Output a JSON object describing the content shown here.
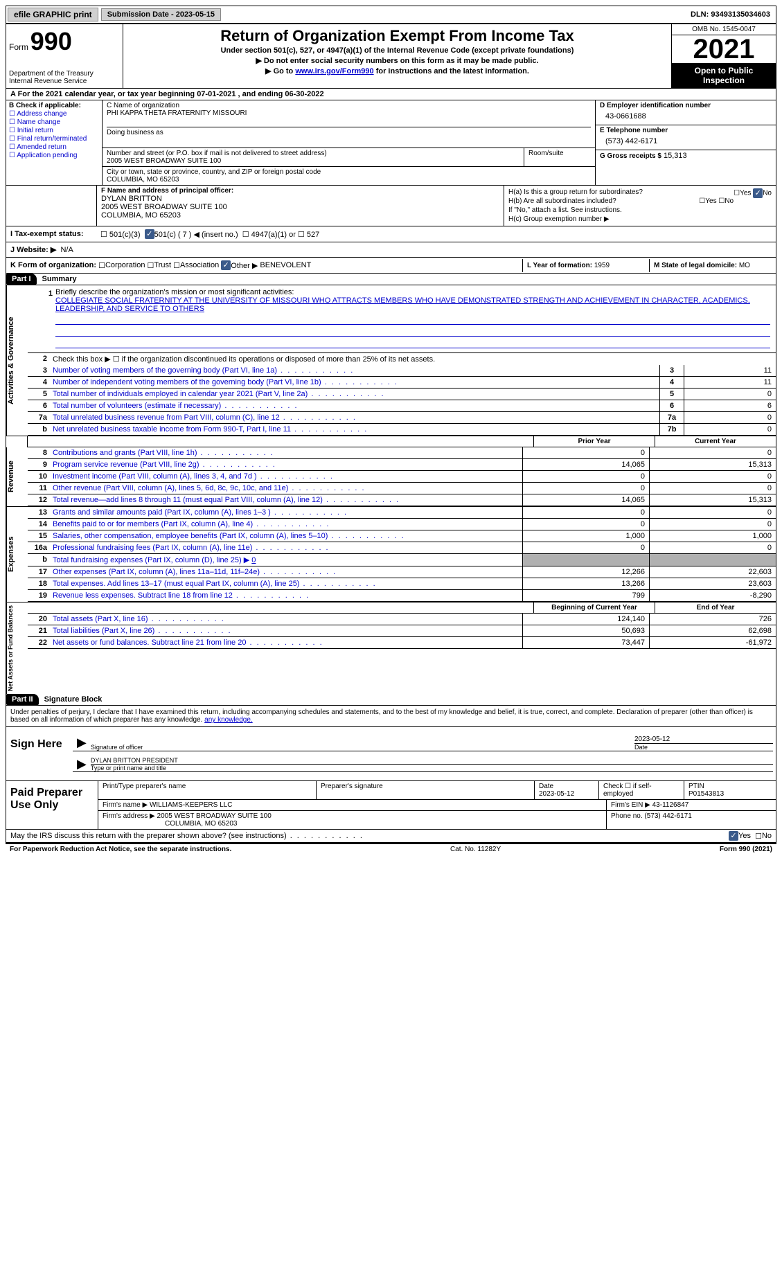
{
  "topbar": {
    "efile_btn": "efile GRAPHIC print",
    "sub_date_label": "Submission Date - 2023-05-15",
    "dln": "DLN: 93493135034603"
  },
  "header": {
    "form_label": "Form",
    "form_num": "990",
    "dept": "Department of the Treasury",
    "irs": "Internal Revenue Service",
    "title": "Return of Organization Exempt From Income Tax",
    "sub1": "Under section 501(c), 527, or 4947(a)(1) of the Internal Revenue Code (except private foundations)",
    "sub2": "▶ Do not enter social security numbers on this form as it may be made public.",
    "sub3_pre": "▶ Go to ",
    "sub3_link": "www.irs.gov/Form990",
    "sub3_post": " for instructions and the latest information.",
    "omb": "OMB No. 1545-0047",
    "year": "2021",
    "inspect": "Open to Public Inspection"
  },
  "row_a": "A For the 2021 calendar year, or tax year beginning 07-01-2021    , and ending 06-30-2022",
  "section_b": {
    "label": "B Check if applicable:",
    "items": [
      "Address change",
      "Name change",
      "Initial return",
      "Final return/terminated",
      "Amended return",
      "Application pending"
    ]
  },
  "section_c": {
    "name_label": "C Name of organization",
    "name": "PHI KAPPA THETA FRATERNITY MISSOURI",
    "dba_label": "Doing business as",
    "addr_label": "Number and street (or P.O. box if mail is not delivered to street address)",
    "addr": "2005 WEST BROADWAY SUITE 100",
    "room_label": "Room/suite",
    "city_label": "City or town, state or province, country, and ZIP or foreign postal code",
    "city": "COLUMBIA, MO  65203"
  },
  "section_d": {
    "ein_label": "D Employer identification number",
    "ein": "43-0661688",
    "phone_label": "E Telephone number",
    "phone": "(573) 442-6171",
    "receipts_label": "G Gross receipts $",
    "receipts": "15,313"
  },
  "section_f": {
    "label": "F  Name and address of principal officer:",
    "name": "DYLAN BRITTON",
    "addr": "2005 WEST BROADWAY SUITE 100",
    "city": "COLUMBIA, MO  65203"
  },
  "section_h": {
    "ha_label": "H(a)  Is this a group return for subordinates?",
    "hb_label": "H(b)  Are all subordinates included?",
    "hb_note": "If \"No,\" attach a list. See instructions.",
    "hc_label": "H(c)  Group exemption number ▶",
    "yes": "Yes",
    "no": "No"
  },
  "row_i": {
    "label": "I   Tax-exempt status:",
    "o1": "501(c)(3)",
    "o2": "501(c) ( 7 ) ◀ (insert no.)",
    "o3": "4947(a)(1) or",
    "o4": "527"
  },
  "row_j": {
    "label": "J   Website: ▶",
    "value": "N/A"
  },
  "row_k": {
    "label": "K Form of organization:",
    "o1": "Corporation",
    "o2": "Trust",
    "o3": "Association",
    "o4": "Other ▶",
    "other_val": "BENEVOLENT"
  },
  "row_l": {
    "label": "L Year of formation:",
    "value": "1959"
  },
  "row_m": {
    "label": "M State of legal domicile:",
    "value": "MO"
  },
  "part1": {
    "header": "Part I",
    "title": "Summary",
    "line1_label": "Briefly describe the organization's mission or most significant activities:",
    "mission": "COLLEGIATE SOCIAL FRATERNITY AT THE UNIVERSITY OF MISSOURI WHO ATTRACTS MEMBERS WHO HAVE DEMONSTRATED STRENGTH AND ACHIEVEMENT IN CHARACTER, ACADEMICS, LEADERSHIP, AND SERVICE TO OTHERS",
    "vert_ag": "Activities & Governance",
    "line2": "Check this box ▶ ☐  if the organization discontinued its operations or disposed of more than 25% of its net assets.",
    "lines_gov": [
      {
        "n": "3",
        "t": "Number of voting members of the governing body (Part VI, line 1a)",
        "box": "3",
        "v": "11"
      },
      {
        "n": "4",
        "t": "Number of independent voting members of the governing body (Part VI, line 1b)",
        "box": "4",
        "v": "11"
      },
      {
        "n": "5",
        "t": "Total number of individuals employed in calendar year 2021 (Part V, line 2a)",
        "box": "5",
        "v": "0"
      },
      {
        "n": "6",
        "t": "Total number of volunteers (estimate if necessary)",
        "box": "6",
        "v": "6"
      },
      {
        "n": "7a",
        "t": "Total unrelated business revenue from Part VIII, column (C), line 12",
        "box": "7a",
        "v": "0"
      },
      {
        "n": "b",
        "t": "Net unrelated business taxable income from Form 990-T, Part I, line 11",
        "box": "7b",
        "v": "0"
      }
    ],
    "col_prior": "Prior Year",
    "col_current": "Current Year",
    "vert_rev": "Revenue",
    "rev": [
      {
        "n": "8",
        "t": "Contributions and grants (Part VIII, line 1h)",
        "p": "0",
        "c": "0"
      },
      {
        "n": "9",
        "t": "Program service revenue (Part VIII, line 2g)",
        "p": "14,065",
        "c": "15,313"
      },
      {
        "n": "10",
        "t": "Investment income (Part VIII, column (A), lines 3, 4, and 7d )",
        "p": "0",
        "c": "0"
      },
      {
        "n": "11",
        "t": "Other revenue (Part VIII, column (A), lines 5, 6d, 8c, 9c, 10c, and 11e)",
        "p": "0",
        "c": "0"
      },
      {
        "n": "12",
        "t": "Total revenue—add lines 8 through 11 (must equal Part VIII, column (A), line 12)",
        "p": "14,065",
        "c": "15,313"
      }
    ],
    "vert_exp": "Expenses",
    "exp": [
      {
        "n": "13",
        "t": "Grants and similar amounts paid (Part IX, column (A), lines 1–3 )",
        "p": "0",
        "c": "0"
      },
      {
        "n": "14",
        "t": "Benefits paid to or for members (Part IX, column (A), line 4)",
        "p": "0",
        "c": "0"
      },
      {
        "n": "15",
        "t": "Salaries, other compensation, employee benefits (Part IX, column (A), lines 5–10)",
        "p": "1,000",
        "c": "1,000"
      },
      {
        "n": "16a",
        "t": "Professional fundraising fees (Part IX, column (A), line 11e)",
        "p": "0",
        "c": "0"
      }
    ],
    "line16b_label": "Total fundraising expenses (Part IX, column (D), line 25) ▶",
    "line16b_val": "0",
    "exp2": [
      {
        "n": "17",
        "t": "Other expenses (Part IX, column (A), lines 11a–11d, 11f–24e)",
        "p": "12,266",
        "c": "22,603"
      },
      {
        "n": "18",
        "t": "Total expenses. Add lines 13–17 (must equal Part IX, column (A), line 25)",
        "p": "13,266",
        "c": "23,603"
      },
      {
        "n": "19",
        "t": "Revenue less expenses. Subtract line 18 from line 12",
        "p": "799",
        "c": "-8,290"
      }
    ],
    "col_beg": "Beginning of Current Year",
    "col_end": "End of Year",
    "vert_na": "Net Assets or Fund Balances",
    "na": [
      {
        "n": "20",
        "t": "Total assets (Part X, line 16)",
        "p": "124,140",
        "c": "726"
      },
      {
        "n": "21",
        "t": "Total liabilities (Part X, line 26)",
        "p": "50,693",
        "c": "62,698"
      },
      {
        "n": "22",
        "t": "Net assets or fund balances. Subtract line 21 from line 20",
        "p": "73,447",
        "c": "-61,972"
      }
    ]
  },
  "part2": {
    "header": "Part II",
    "title": "Signature Block",
    "penalty": "Under penalties of perjury, I declare that I have examined this return, including accompanying schedules and statements, and to the best of my knowledge and belief, it is true, correct, and complete. Declaration of preparer (other than officer) is based on all information of which preparer has any knowledge.",
    "sign_here": "Sign Here",
    "sig_officer_label": "Signature of officer",
    "sig_date": "2023-05-12",
    "date_label": "Date",
    "officer_name": "DYLAN BRITTON  PRESIDENT",
    "officer_name_label": "Type or print name and title",
    "paid_label": "Paid Preparer Use Only",
    "prep_name_label": "Print/Type preparer's name",
    "prep_sig_label": "Preparer's signature",
    "prep_date_label": "Date",
    "prep_date": "2023-05-12",
    "check_self": "Check ☐ if self-employed",
    "ptin_label": "PTIN",
    "ptin": "P01543813",
    "firm_name_label": "Firm's name    ▶",
    "firm_name": "WILLIAMS-KEEPERS LLC",
    "firm_ein_label": "Firm's EIN ▶",
    "firm_ein": "43-1126847",
    "firm_addr_label": "Firm's address ▶",
    "firm_addr": "2005 WEST BROADWAY SUITE 100",
    "firm_city": "COLUMBIA, MO  65203",
    "firm_phone_label": "Phone no.",
    "firm_phone": "(573) 442-6171",
    "discuss": "May the IRS discuss this return with the preparer shown above? (see instructions)",
    "yes": "Yes",
    "no": "No"
  },
  "footer": {
    "left": "For Paperwork Reduction Act Notice, see the separate instructions.",
    "mid": "Cat. No. 11282Y",
    "right": "Form 990 (2021)"
  }
}
